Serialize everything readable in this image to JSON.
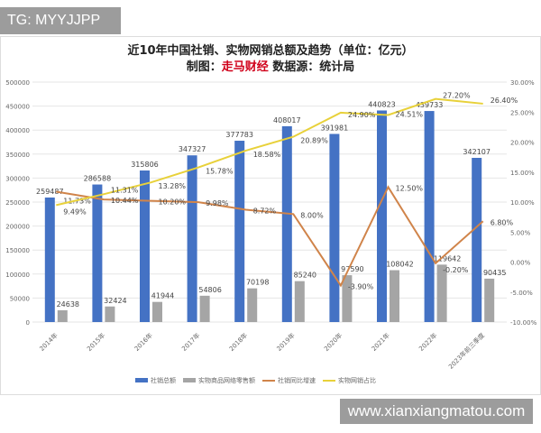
{
  "badge": "TG: MYYJJPP",
  "watermark": "www.xianxiangmatou.com",
  "chart_data": {
    "type": "bar",
    "title": "近10年中国社销、实物网销总额及趋势（单位：亿元）",
    "subtitle_prefix": "制图：",
    "subtitle_brand": "走马财经",
    "subtitle_suffix": " 数据源：统计局",
    "categories": [
      "2014年",
      "2015年",
      "2016年",
      "2017年",
      "2018年",
      "2019年",
      "2020年",
      "2021年",
      "2022年",
      "2023年前三季度"
    ],
    "series": [
      {
        "name": "社销总额",
        "type": "bar",
        "axis": "left",
        "color": "#4472c4",
        "values": [
          259487,
          286588,
          315806,
          347327,
          377783,
          408017,
          391981,
          440823,
          439733,
          342107
        ]
      },
      {
        "name": "实物商品网络零售额",
        "type": "bar",
        "axis": "left",
        "color": "#a5a5a5",
        "values": [
          24638,
          32424,
          41944,
          54806,
          70198,
          85240,
          97590,
          108042,
          119642,
          90435
        ]
      },
      {
        "name": "社销同比增速",
        "type": "line",
        "axis": "right",
        "color": "#d0844a",
        "values": [
          11.73,
          10.44,
          10.2,
          9.98,
          8.72,
          8.0,
          -3.9,
          12.5,
          -0.2,
          6.8
        ]
      },
      {
        "name": "实物网销占比",
        "type": "line",
        "axis": "right",
        "color": "#e8d13a",
        "values": [
          9.49,
          11.31,
          13.28,
          15.78,
          18.58,
          20.89,
          24.9,
          24.51,
          27.2,
          26.4
        ]
      }
    ],
    "ylim": [
      0,
      500000
    ],
    "yticks": [
      "0",
      "50000",
      "100000",
      "150000",
      "200000",
      "250000",
      "300000",
      "350000",
      "400000",
      "450000",
      "500000"
    ],
    "y2lim": [
      -10,
      30
    ],
    "y2ticks": [
      "-10.00%",
      "-5.00%",
      "0.00%",
      "5.00%",
      "10.00%",
      "15.00%",
      "20.00%",
      "25.00%",
      "30.00%"
    ],
    "grid": true,
    "legend": "bottom"
  }
}
